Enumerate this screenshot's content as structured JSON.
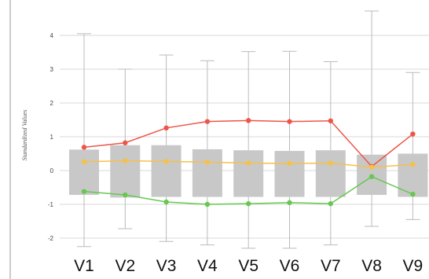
{
  "chart_data": {
    "type": "box",
    "ylabel": "Standardized Values",
    "ylim": [
      -2.3,
      4.7
    ],
    "yticks": [
      "-2",
      "-1",
      "0",
      "1",
      "2",
      "3",
      "4"
    ],
    "categories": [
      "V1",
      "V2",
      "V3",
      "V4",
      "V5",
      "V6",
      "V7",
      "V8",
      "V9"
    ],
    "boxes": [
      {
        "whisker_low": -2.25,
        "q1": -0.72,
        "q3": 0.62,
        "whisker_high": 4.05
      },
      {
        "whisker_low": -1.72,
        "q1": -0.8,
        "q3": 0.75,
        "whisker_high": 3.0
      },
      {
        "whisker_low": -2.1,
        "q1": -0.78,
        "q3": 0.75,
        "whisker_high": 3.42
      },
      {
        "whisker_low": -2.2,
        "q1": -0.78,
        "q3": 0.63,
        "whisker_high": 3.25
      },
      {
        "whisker_low": -2.3,
        "q1": -0.78,
        "q3": 0.6,
        "whisker_high": 3.52
      },
      {
        "whisker_low": -2.3,
        "q1": -0.78,
        "q3": 0.58,
        "whisker_high": 3.53
      },
      {
        "whisker_low": -2.2,
        "q1": -0.78,
        "q3": 0.6,
        "whisker_high": 3.22
      },
      {
        "whisker_low": -1.65,
        "q1": -0.72,
        "q3": 0.47,
        "whisker_high": 4.72
      },
      {
        "whisker_low": -1.45,
        "q1": -0.78,
        "q3": 0.5,
        "whisker_high": 2.9
      }
    ],
    "series": [
      {
        "values": [
          0.69,
          0.82,
          1.26,
          1.45,
          1.48,
          1.45,
          1.47,
          0.12,
          1.08
        ],
        "color": "#ee5548"
      },
      {
        "values": [
          0.26,
          0.29,
          0.27,
          0.25,
          0.22,
          0.21,
          0.22,
          0.1,
          0.18
        ],
        "color": "#f5c14a"
      },
      {
        "values": [
          -0.62,
          -0.72,
          -0.93,
          -1.0,
          -0.98,
          -0.95,
          -0.98,
          -0.18,
          -0.7
        ],
        "color": "#66c850"
      }
    ],
    "grid": true,
    "box_color": "#c8c8c8",
    "whisker_color": "#bbbbbb"
  }
}
